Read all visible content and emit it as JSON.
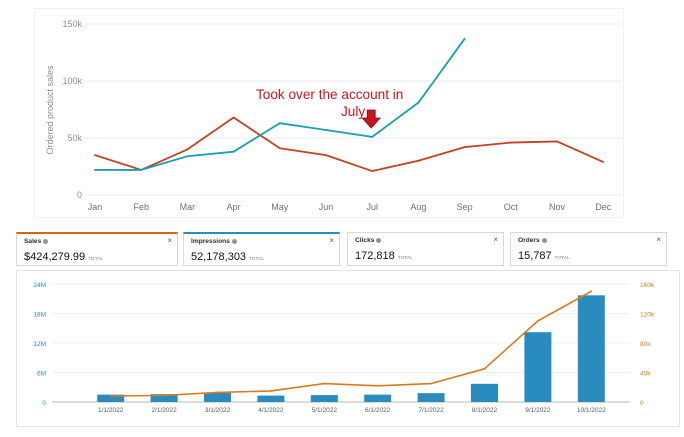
{
  "chart_data": [
    {
      "type": "line",
      "ylabel": "Ordered product sales",
      "categories": [
        "Jan",
        "Feb",
        "Mar",
        "Apr",
        "May",
        "Jun",
        "Jul",
        "Aug",
        "Sep",
        "Oct",
        "Nov",
        "Dec"
      ],
      "yticks": [
        "0",
        "50k",
        "100k",
        "150k"
      ],
      "ylim": [
        0,
        150000
      ],
      "series": [
        {
          "values": [
            35000,
            22000,
            40000,
            68000,
            41000,
            35000,
            21000,
            30000,
            42000,
            46000,
            47000,
            29000
          ],
          "color": "#c8401f"
        },
        {
          "values": [
            22000,
            22000,
            34000,
            38000,
            63000,
            57000,
            51000,
            81000,
            137000,
            null,
            null,
            null
          ],
          "color": "#17a2ad"
        }
      ],
      "annotation": [
        "Took over the account in",
        "July"
      ],
      "grid": true
    },
    {
      "type": "bar+line",
      "categories": [
        "1/1/2022",
        "2/1/2022",
        "3/1/2022",
        "4/1/2022",
        "5/1/2022",
        "6/1/2022",
        "7/1/2022",
        "8/1/2022",
        "9/1/2022",
        "10/1/2022"
      ],
      "y_left_ticks": [
        "0",
        "6M",
        "12M",
        "18M",
        "24M"
      ],
      "y_left_lim": [
        0,
        24000000
      ],
      "y_right_ticks": [
        "0",
        "40k",
        "80k",
        "120k",
        "160k"
      ],
      "y_right_lim": [
        0,
        160000
      ],
      "bars": {
        "name": "Impressions",
        "color": "#2a8bbf",
        "values": [
          1500000,
          1600000,
          1900000,
          1300000,
          1400000,
          1500000,
          1800000,
          3700000,
          14200000,
          21700000
        ]
      },
      "line": {
        "name": "Sales",
        "color": "#d97b1c",
        "values": [
          8000,
          9000,
          13000,
          15000,
          25000,
          22000,
          25000,
          45000,
          110000,
          150000
        ]
      }
    }
  ],
  "cards": [
    {
      "label": "Sales",
      "value": "$424,279.99",
      "total": "TOTAL",
      "color": "#c86c16"
    },
    {
      "label": "Impressions",
      "value": "52,178,303",
      "total": "TOTAL",
      "color": "#2a8bbf"
    },
    {
      "label": "Clicks",
      "value": "172,818",
      "total": "TOTAL",
      "color": ""
    },
    {
      "label": "Orders",
      "value": "15,787",
      "total": "TOTAL",
      "color": ""
    }
  ],
  "close_glyph": "×"
}
